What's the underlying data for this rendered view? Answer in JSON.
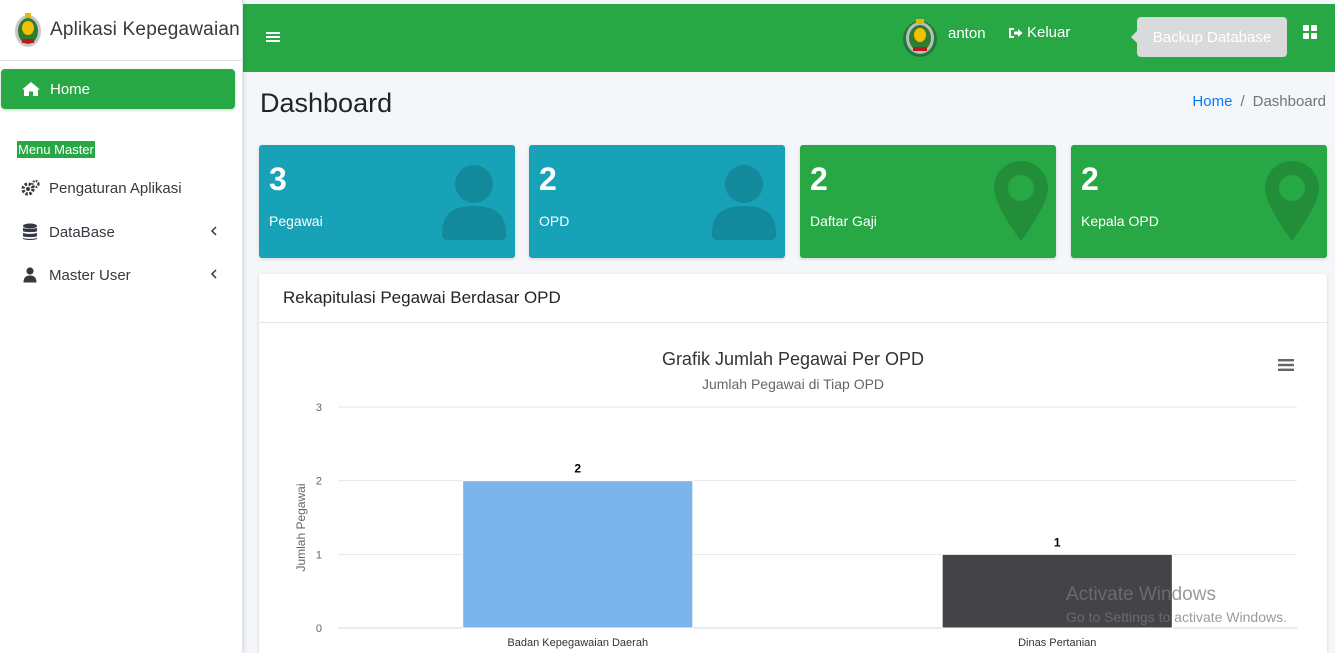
{
  "app": {
    "brand": "Aplikasi Kepegawaian"
  },
  "sidebar": {
    "home_label": "Home",
    "section_header": "Menu Master",
    "items": [
      {
        "label": "Pengaturan Aplikasi",
        "icon": "gears-icon"
      },
      {
        "label": "DataBase",
        "icon": "database-icon"
      },
      {
        "label": "Master User",
        "icon": "user-icon"
      }
    ]
  },
  "topbar": {
    "user_name": "anton",
    "logout_label": "Keluar",
    "backup_label": "Backup Database"
  },
  "content": {
    "title": "Dashboard",
    "breadcrumb": {
      "home": "Home",
      "current": "Dashboard"
    }
  },
  "stats": [
    {
      "value": "3",
      "label": "Pegawai",
      "color": "#17a2b8",
      "icon": "person-icon"
    },
    {
      "value": "2",
      "label": "OPD",
      "color": "#17a2b8",
      "icon": "person-icon"
    },
    {
      "value": "2",
      "label": "Daftar Gaji",
      "color": "#28a745",
      "icon": "map-marker-icon"
    },
    {
      "value": "2",
      "label": "Kepala OPD",
      "color": "#28a745",
      "icon": "map-marker-icon"
    }
  ],
  "card": {
    "header": "Rekapitulasi Pegawai Berdasar OPD"
  },
  "chart_data": {
    "type": "bar",
    "title": "Grafik Jumlah Pegawai Per OPD",
    "subtitle": "Jumlah Pegawai di Tiap OPD",
    "categories": [
      "Badan Kepegawaian Daerah",
      "Dinas Pertanian"
    ],
    "values": [
      2,
      1
    ],
    "colors": [
      "#7cb5ec",
      "#434348"
    ],
    "xlabel": "",
    "ylabel": "Jumlah Pegawai",
    "ylim": [
      0,
      3
    ],
    "yticks": [
      0,
      1,
      2,
      3
    ],
    "grid": true,
    "data_labels": true
  },
  "watermark": {
    "line1": "Activate Windows",
    "line2": "Go to Settings to activate Windows."
  }
}
